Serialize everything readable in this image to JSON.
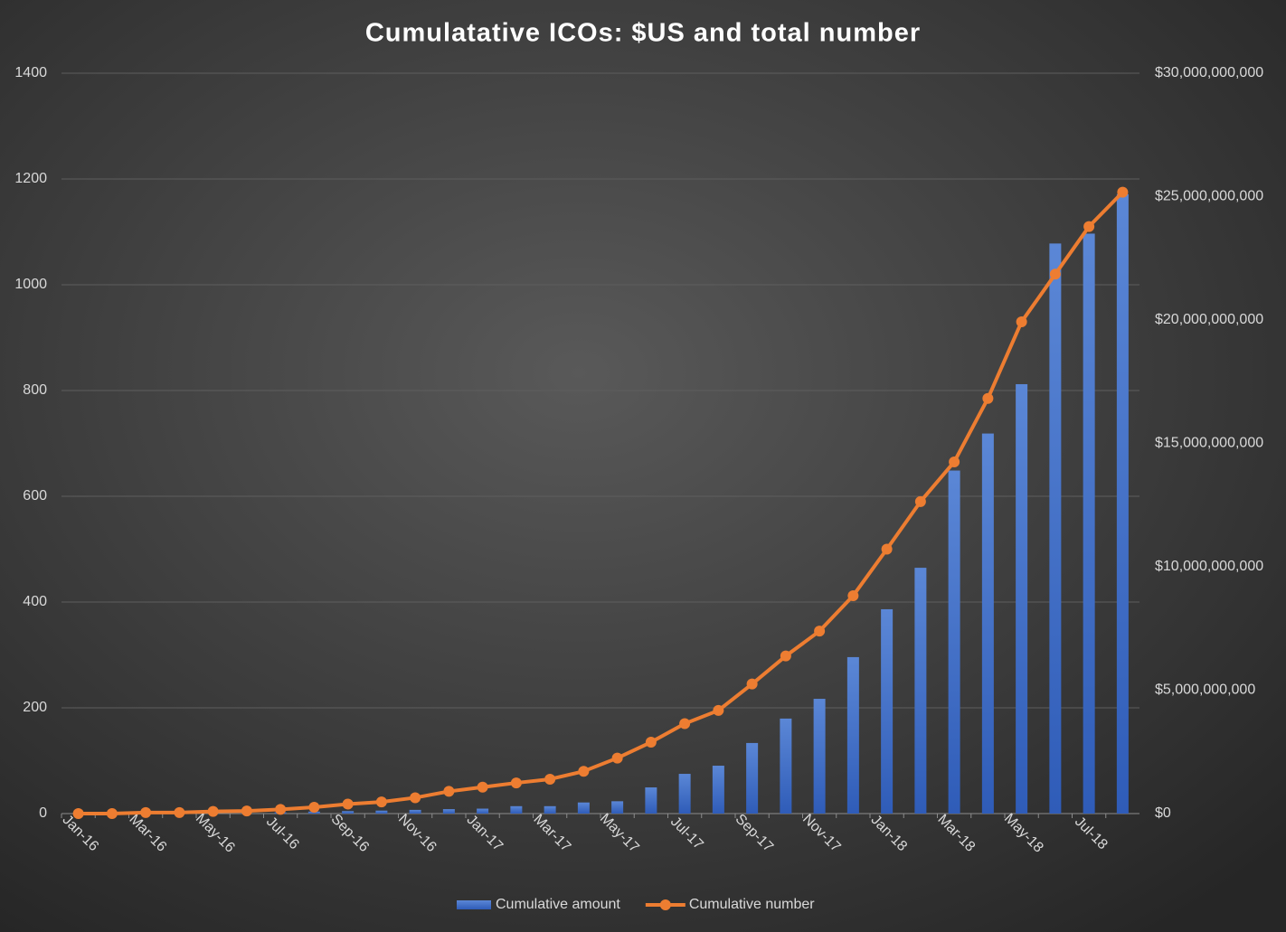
{
  "chart_data": {
    "type": "bar_line",
    "title": "Cumulatative ICOs: $US and total number",
    "categories": [
      "Jan-16",
      null,
      "Mar-16",
      null,
      "May-16",
      null,
      "Jul-16",
      null,
      "Sep-16",
      null,
      "Nov-16",
      null,
      "Jan-17",
      null,
      "Mar-17",
      null,
      "May-17",
      null,
      "Jul-17",
      null,
      "Sep-17",
      null,
      "Nov-17",
      null,
      "Jan-18",
      null,
      "Mar-18",
      null,
      "May-18",
      null,
      "Jul-18",
      null
    ],
    "series": [
      {
        "name": "Cumulative amount",
        "type": "bar",
        "axis": "y2",
        "color": "#4472c4",
        "values": [
          0,
          0,
          0,
          0,
          0,
          0,
          50000000,
          80000000,
          100000000,
          120000000,
          150000000,
          180000000,
          200000000,
          300000000,
          300000000,
          450000000,
          500000000,
          1060000000,
          1610000000,
          1940000000,
          2860000000,
          3850000000,
          4650000000,
          6340000000,
          8280000000,
          9960000000,
          13900000000,
          15400000000,
          17400000000,
          23100000000,
          23500000000,
          25100000000
        ]
      },
      {
        "name": "Cumulative number",
        "type": "line",
        "axis": "y",
        "color": "#ed7d31",
        "values": [
          0,
          0,
          2,
          2,
          4,
          5,
          8,
          12,
          18,
          22,
          30,
          42,
          50,
          58,
          65,
          80,
          105,
          135,
          170,
          195,
          245,
          298,
          345,
          412,
          500,
          590,
          665,
          785,
          930,
          1020,
          1110,
          1175
        ]
      }
    ],
    "ylim": [
      0,
      1400
    ],
    "yticks": [
      0,
      200,
      400,
      600,
      800,
      1000,
      1200,
      1400
    ],
    "y2lim": [
      0,
      30000000000
    ],
    "y2ticks": [
      {
        "value": 0,
        "label": "$0"
      },
      {
        "value": 5000000000,
        "label": "$5,000,000,000"
      },
      {
        "value": 10000000000,
        "label": "$10,000,000,000"
      },
      {
        "value": 15000000000,
        "label": "$15,000,000,000"
      },
      {
        "value": 20000000000,
        "label": "$20,000,000,000"
      },
      {
        "value": 25000000000,
        "label": "$25,000,000,000"
      },
      {
        "value": 30000000000,
        "label": "$30,000,000,000"
      }
    ],
    "grid": true,
    "legend": "bottom"
  }
}
